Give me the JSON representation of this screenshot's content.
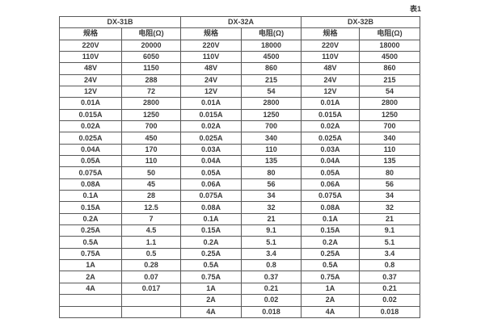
{
  "caption": "表1",
  "table": {
    "groups": [
      {
        "name": "DX-31B"
      },
      {
        "name": "DX-32A"
      },
      {
        "name": "DX-32B"
      }
    ],
    "col_headers": [
      "规格",
      "电阻(Ω)",
      "规格",
      "电阻(Ω)",
      "规格",
      "电阻(Ω)"
    ],
    "rows": [
      [
        "220V",
        "20000",
        "220V",
        "18000",
        "220V",
        "18000"
      ],
      [
        "110V",
        "6050",
        "110V",
        "4500",
        "110V",
        "4500"
      ],
      [
        "48V",
        "1150",
        "48V",
        "860",
        "48V",
        "860"
      ],
      [
        "24V",
        "288",
        "24V",
        "215",
        "24V",
        "215"
      ],
      [
        "12V",
        "72",
        "12V",
        "54",
        "12V",
        "54"
      ],
      [
        "0.01A",
        "2800",
        "0.01A",
        "2800",
        "0.01A",
        "2800"
      ],
      [
        "0.015A",
        "1250",
        "0.015A",
        "1250",
        "0.015A",
        "1250"
      ],
      [
        "0.02A",
        "700",
        "0.02A",
        "700",
        "0.02A",
        "700"
      ],
      [
        "0.025A",
        "450",
        "0.025A",
        "340",
        "0.025A",
        "340"
      ],
      [
        "0.04A",
        "170",
        "0.03A",
        "110",
        "0.03A",
        "110"
      ],
      [
        "0.05A",
        "110",
        "0.04A",
        "135",
        "0.04A",
        "135"
      ],
      [
        "0.075A",
        "50",
        "0.05A",
        "80",
        "0.05A",
        "80"
      ],
      [
        "0.08A",
        "45",
        "0.06A",
        "56",
        "0.06A",
        "56"
      ],
      [
        "0.1A",
        "28",
        "0.075A",
        "34",
        "0.075A",
        "34"
      ],
      [
        "0.15A",
        "12.5",
        "0.08A",
        "32",
        "0.08A",
        "32"
      ],
      [
        "0.2A",
        "7",
        "0.1A",
        "21",
        "0.1A",
        "21"
      ],
      [
        "0.25A",
        "4.5",
        "0.15A",
        "9.1",
        "0.15A",
        "9.1"
      ],
      [
        "0.5A",
        "1.1",
        "0.2A",
        "5.1",
        "0.2A",
        "5.1"
      ],
      [
        "0.75A",
        "0.5",
        "0.25A",
        "3.4",
        "0.25A",
        "3.4"
      ],
      [
        "1A",
        "0.28",
        "0.5A",
        "0.8",
        "0.5A",
        "0.8"
      ],
      [
        "2A",
        "0.07",
        "0.75A",
        "0.37",
        "0.75A",
        "0.37"
      ],
      [
        "4A",
        "0.017",
        "1A",
        "0.21",
        "1A",
        "0.21"
      ],
      [
        "",
        "",
        "2A",
        "0.02",
        "2A",
        "0.02"
      ],
      [
        "",
        "",
        "4A",
        "0.018",
        "4A",
        "0.018"
      ]
    ],
    "colors": {
      "border": "#595959",
      "text": "#3a3a3a",
      "background": "#ffffff"
    }
  }
}
